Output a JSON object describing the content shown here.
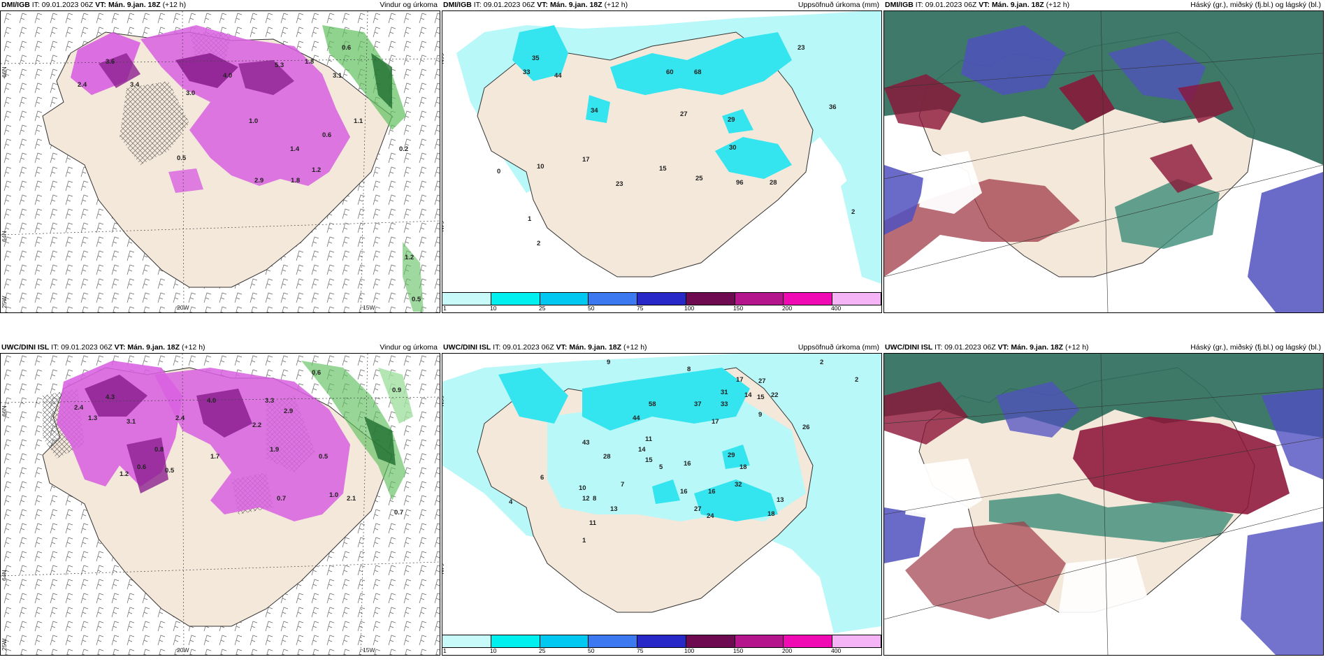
{
  "panels": {
    "p1": {
      "model": "DMI/IGB",
      "it_label": "IT:",
      "it": "09.01.2023 06Z",
      "vt_label": "VT:",
      "vt": "Mán. 9.jan. 18Z",
      "lead": "(+12 h)",
      "title": "Vindur og úrkoma"
    },
    "p2": {
      "model": "DMI/IGB",
      "it_label": "IT:",
      "it": "09.01.2023 06Z",
      "vt_label": "VT:",
      "vt": "Mán. 9.jan. 18Z",
      "lead": "(+12 h)",
      "title": "Uppsöfnuð úrkoma (mm)"
    },
    "p3": {
      "model": "DMI/IGB",
      "it_label": "IT:",
      "it": "09.01.2023 06Z",
      "vt_label": "VT:",
      "vt": "Mán. 9.jan. 18Z",
      "lead": "(+12 h)",
      "title": "Háský (gr.), miðský (fj.bl.) og lágský (bl.)"
    },
    "p4": {
      "model": "UWC/DINI ISL",
      "it_label": "IT:",
      "it": "09.01.2023 06Z",
      "vt_label": "VT:",
      "vt": "Mán. 9.jan. 18Z",
      "lead": "(+12 h)",
      "title": "Vindur og úrkoma"
    },
    "p5": {
      "model": "UWC/DINI ISL",
      "it_label": "IT:",
      "it": "09.01.2023 06Z",
      "vt_label": "VT:",
      "vt": "Mán. 9.jan. 18Z",
      "lead": "(+12 h)",
      "title": "Uppsöfnuð úrkoma (mm)"
    },
    "p6": {
      "model": "UWC/DINI ISL",
      "it_label": "IT:",
      "it": "09.01.2023 06Z",
      "vt_label": "VT:",
      "vt": "Mán. 9.jan. 18Z",
      "lead": "(+12 h)",
      "title": "Háský (gr.), miðský (fj.bl.) og lágský (bl.)"
    }
  },
  "axes": {
    "lat66": "66N",
    "lat64": "64N",
    "lat63": "63N",
    "lon20": "20W",
    "lon15": "15W",
    "lon25": "25W"
  },
  "colorbar": {
    "labels": [
      "1",
      "10",
      "25",
      "50",
      "75",
      "100",
      "150",
      "200",
      "400"
    ],
    "colors": [
      "#c8fafa",
      "#00f0f0",
      "#00c8f0",
      "#3c78f0",
      "#2828c8",
      "#6e0a50",
      "#b4148c",
      "#f00ab4",
      "#f5b4f5"
    ]
  },
  "colors": {
    "land": "#f4e8da",
    "magenta": "#d860e0",
    "darkmagenta": "#8c2090",
    "cyan": "#34e4ee",
    "lightcyan": "#b8f8f8",
    "seagreen": "#2e6e5c",
    "wine": "#8c1438",
    "slate": "#5050c0",
    "green": "#60c060"
  },
  "precip_values": {
    "p1": [
      "3.6",
      "3.4",
      "2.4",
      "3.0",
      "4.0",
      "5.3",
      "1.8",
      "3.1",
      "0.6",
      "1.0",
      "1.4",
      "0.5",
      "0.6",
      "1.2",
      "2.9",
      "1.8",
      "1.1",
      "0.2"
    ],
    "p1_extra": [
      "1.2",
      "0.5"
    ],
    "p2": [
      "35",
      "33",
      "44",
      "34",
      "60",
      "68",
      "27",
      "29",
      "30",
      "23",
      "17",
      "10",
      "0",
      "15",
      "23",
      "25",
      "96",
      "28",
      "1",
      "2",
      "2",
      "36"
    ],
    "p4": [
      "2.4",
      "4.3",
      "1.3",
      "3.1",
      "2.4",
      "4.0",
      "3.3",
      "2.9",
      "1.9",
      "2.2",
      "0.8",
      "0.5",
      "0.6",
      "1.2",
      "1.7",
      "0.7",
      "1.0",
      "0.5",
      "0.9",
      "0.6",
      "2.1",
      "0.7"
    ],
    "p5": [
      "9",
      "8",
      "2",
      "2",
      "17",
      "27",
      "14",
      "15",
      "22",
      "31",
      "33",
      "37",
      "58",
      "44",
      "9",
      "17",
      "43",
      "11",
      "14",
      "15",
      "5",
      "16",
      "28",
      "29",
      "18",
      "32",
      "16",
      "27",
      "24",
      "26",
      "18",
      "13",
      "10",
      "12",
      "8",
      "11",
      "13",
      "16",
      "6",
      "4",
      "7",
      "1"
    ]
  }
}
